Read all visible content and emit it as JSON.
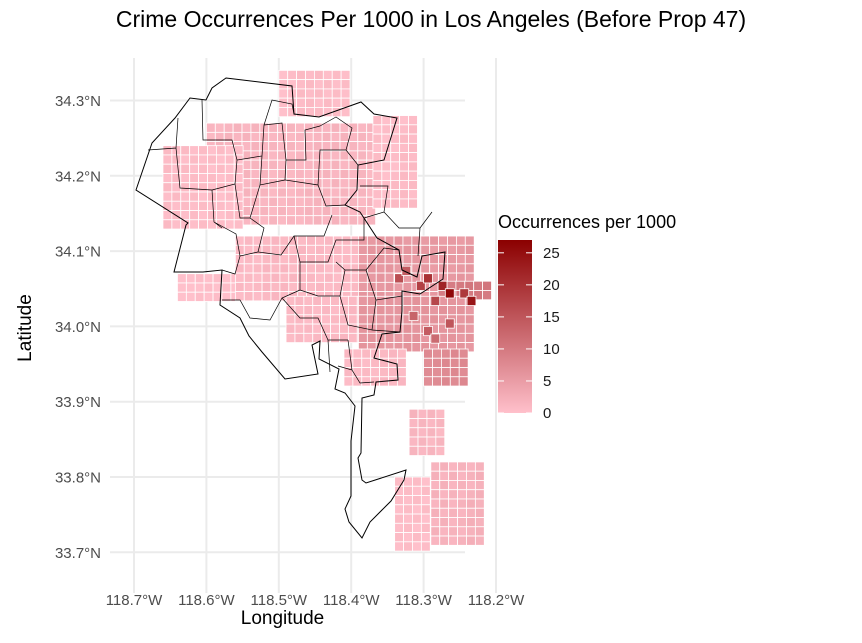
{
  "title": "Crime Occurrences Per 1000 in Los Angeles (Before Prop 47)",
  "colors": {
    "low": "#ffc0cb",
    "high": "#8b0000",
    "grid": "#ebebeb",
    "tick": "#4d4d4d",
    "boundary": "#000000"
  },
  "chart_data": {
    "type": "heatmap",
    "subtype": "geographic grid map with boundary overlay",
    "title": "Crime Occurrences Per 1000 in Los Angeles (Before Prop 47)",
    "xlabel": "Longitude",
    "ylabel": "Latitude",
    "xlim": [
      -118.72,
      -118.14
    ],
    "ylim": [
      33.67,
      34.37
    ],
    "x_ticks": [
      -118.7,
      -118.6,
      -118.5,
      -118.4,
      -118.3,
      -118.2
    ],
    "x_tick_labels": [
      "118.7°W",
      "118.6°W",
      "118.5°W",
      "118.4°W",
      "118.3°W",
      "118.2°W"
    ],
    "y_ticks": [
      33.7,
      33.8,
      33.9,
      34.0,
      34.1,
      34.2,
      34.3
    ],
    "y_tick_labels": [
      "33.7°N",
      "33.8°N",
      "33.9°N",
      "34.0°N",
      "34.1°N",
      "34.2°N",
      "34.3°N"
    ],
    "grid": true,
    "legend": {
      "title": "Occurrences per 1000",
      "position": "right",
      "min": 0,
      "max": 27,
      "breaks": [
        0,
        5,
        10,
        15,
        20,
        25
      ],
      "labels": [
        "0",
        "5",
        "10",
        "15",
        "20",
        "25"
      ]
    },
    "cell_size_deg": 0.0123,
    "cells": {
      "type": "rect_cells",
      "columns": [
        "lon_min",
        "lat_max",
        "lon_max",
        "lat_min",
        "value"
      ],
      "regions": [
        [
          -118.5,
          34.34,
          -118.41,
          34.29,
          1.5
        ],
        [
          -118.6,
          34.27,
          -118.37,
          34.14,
          2.5
        ],
        [
          -118.66,
          34.24,
          -118.56,
          34.14,
          1.5
        ],
        [
          -118.37,
          34.28,
          -118.31,
          34.16,
          1.5
        ],
        [
          -118.64,
          34.07,
          -118.55,
          34.04,
          1.0
        ],
        [
          -118.56,
          34.12,
          -118.4,
          34.04,
          2.0
        ],
        [
          -118.39,
          34.12,
          -118.24,
          34.01,
          6.5
        ],
        [
          -118.28,
          34.06,
          -118.21,
          34.04,
          11.0
        ],
        [
          -118.49,
          34.04,
          -118.39,
          33.98,
          2.0
        ],
        [
          -118.39,
          34.04,
          -118.24,
          33.97,
          7.0
        ],
        [
          -118.3,
          33.97,
          -118.24,
          33.93,
          8.5
        ],
        [
          -118.41,
          33.97,
          -118.33,
          33.93,
          2.0
        ],
        [
          -118.32,
          33.89,
          -118.28,
          33.84,
          2.5
        ],
        [
          -118.29,
          33.82,
          -118.22,
          33.71,
          3.0
        ],
        [
          -118.34,
          33.8,
          -118.3,
          33.71,
          1.5
        ]
      ],
      "hotspots": [
        [
          -118.34,
          34.07,
          16
        ],
        [
          -118.33,
          34.08,
          14
        ],
        [
          -118.31,
          34.06,
          18
        ],
        [
          -118.3,
          34.07,
          20
        ],
        [
          -118.28,
          34.06,
          22
        ],
        [
          -118.27,
          34.05,
          26
        ],
        [
          -118.29,
          34.04,
          17
        ],
        [
          -118.25,
          34.05,
          19
        ],
        [
          -118.24,
          34.04,
          24
        ],
        [
          -118.32,
          34.02,
          13
        ],
        [
          -118.3,
          34.0,
          14
        ],
        [
          -118.29,
          33.99,
          12
        ],
        [
          -118.27,
          34.01,
          15
        ]
      ]
    }
  }
}
